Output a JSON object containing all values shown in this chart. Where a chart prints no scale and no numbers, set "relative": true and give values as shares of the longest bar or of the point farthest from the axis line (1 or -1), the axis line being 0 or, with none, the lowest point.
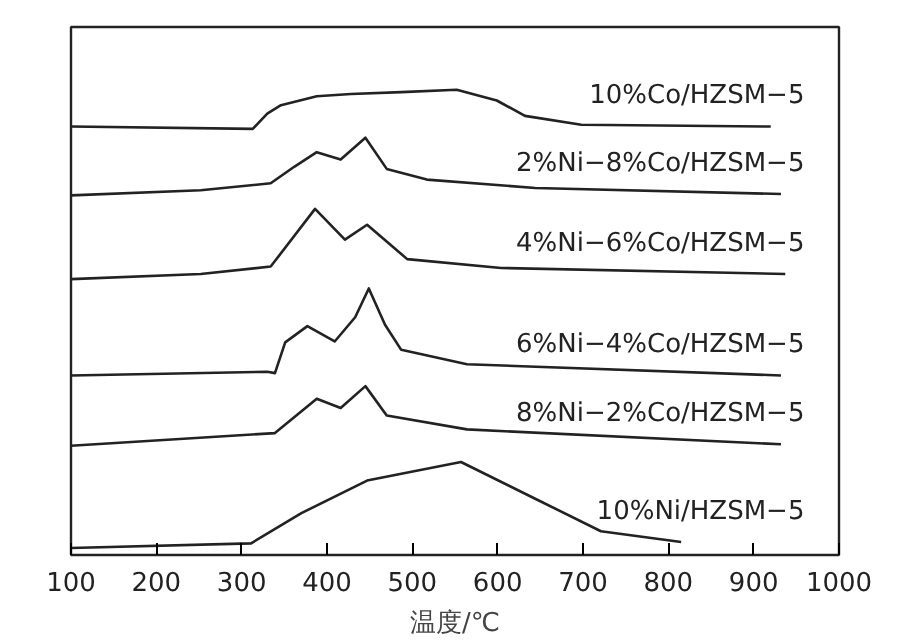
{
  "chart_data": {
    "type": "line",
    "relative": true,
    "xlabel": "温度/℃",
    "xlim": [
      100,
      1000
    ],
    "xticks": [
      100,
      200,
      300,
      400,
      500,
      600,
      700,
      800,
      900,
      1000
    ],
    "grid": false,
    "marker": "none",
    "line_style": "solid",
    "tick_labels": "x",
    "series": [
      {
        "name": "10%Co/HZSM−5",
        "color": "#222222",
        "x": [
          100,
          313,
          330,
          346,
          388,
          428,
          487,
          552,
          599,
          632,
          698,
          920
        ],
        "values": [
          0.921,
          0.916,
          0.949,
          0.967,
          0.986,
          0.991,
          0.995,
          1.0,
          0.977,
          0.944,
          0.925,
          0.921
        ]
      },
      {
        "name": "2%Ni−8%Co/HZSM−5",
        "color": "#222222",
        "x": [
          100,
          252,
          334,
          362,
          388,
          416,
          445,
          470,
          517,
          644,
          932
        ],
        "values": [
          0.773,
          0.784,
          0.799,
          0.835,
          0.866,
          0.85,
          0.897,
          0.83,
          0.807,
          0.789,
          0.776
        ]
      },
      {
        "name": "4%Ni−6%Co/HZSM−5",
        "color": "#222222",
        "x": [
          100,
          252,
          334,
          386,
          421,
          447,
          494,
          604,
          937
        ],
        "values": [
          0.593,
          0.604,
          0.62,
          0.744,
          0.678,
          0.71,
          0.636,
          0.617,
          0.604
        ]
      },
      {
        "name": "6%Ni−4%Co/HZSM−5",
        "color": "#222222",
        "x": [
          100,
          330,
          339,
          351,
          377,
          409,
          433,
          449,
          468,
          487,
          564,
          932
        ],
        "values": [
          0.386,
          0.394,
          0.391,
          0.457,
          0.492,
          0.459,
          0.511,
          0.573,
          0.495,
          0.441,
          0.41,
          0.386
        ]
      },
      {
        "name": "8%Ni−2%Co/HZSM−5",
        "color": "#222222",
        "x": [
          100,
          339,
          388,
          416,
          445,
          470,
          564,
          932
        ],
        "values": [
          0.235,
          0.262,
          0.336,
          0.316,
          0.363,
          0.3,
          0.27,
          0.238
        ]
      },
      {
        "name": "10%Ni/HZSM−5",
        "color": "#222222",
        "x": [
          100,
          311,
          370,
          447,
          557,
          644,
          721,
          815
        ],
        "values": [
          0.015,
          0.025,
          0.09,
          0.16,
          0.2,
          0.121,
          0.051,
          0.028
        ]
      }
    ]
  }
}
